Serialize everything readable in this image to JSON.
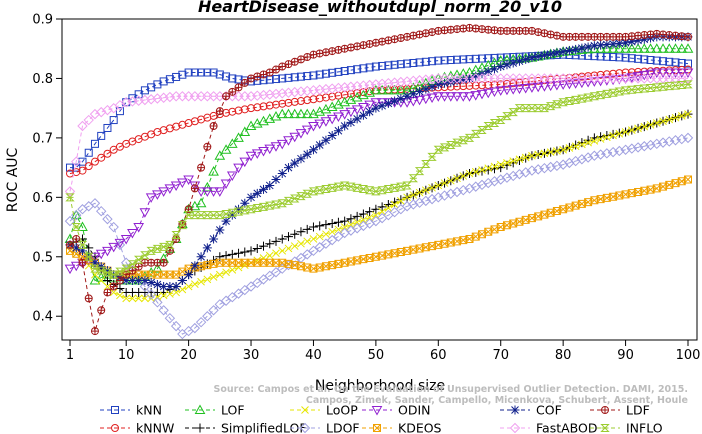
{
  "chart_data": {
    "type": "line",
    "title": "HeartDisease_withoutdupl_norm_20_v10",
    "xlabel": "Neighborhood size",
    "ylabel": "ROC AUC",
    "xlim": [
      1,
      100
    ],
    "ylim": [
      0.36,
      0.9
    ],
    "x_ticks": [
      1,
      10,
      20,
      30,
      40,
      50,
      60,
      70,
      80,
      90,
      100
    ],
    "y_ticks": [
      0.4,
      0.5,
      0.6,
      0.7,
      0.8,
      0.9
    ],
    "x_tick_labels": [
      "1",
      "10",
      "20",
      "30",
      "40",
      "50",
      "60",
      "70",
      "80",
      "90",
      "100"
    ],
    "y_tick_labels": [
      "0.4",
      "0.5",
      "0.6",
      "0.7",
      "0.8",
      "0.9"
    ],
    "grid": false,
    "legend_position": "bottom",
    "citation": [
      "Source: Campos et al. On the Evaluation of Unsupervised Outlier Detection. DAMI, 2015.",
      "Campos, Zimek, Sander, Campello, Micenkova, Schubert, Assent, Houle"
    ],
    "series": [
      {
        "name": "kNN",
        "color": "#2040c0",
        "marker": "square",
        "points": [
          [
            1,
            0.65
          ],
          [
            2,
            0.65
          ],
          [
            3,
            0.66
          ],
          [
            5,
            0.69
          ],
          [
            8,
            0.73
          ],
          [
            10,
            0.76
          ],
          [
            13,
            0.78
          ],
          [
            16,
            0.795
          ],
          [
            20,
            0.81
          ],
          [
            24,
            0.81
          ],
          [
            27,
            0.8
          ],
          [
            30,
            0.795
          ],
          [
            35,
            0.8
          ],
          [
            40,
            0.805
          ],
          [
            50,
            0.82
          ],
          [
            60,
            0.83
          ],
          [
            70,
            0.835
          ],
          [
            80,
            0.84
          ],
          [
            90,
            0.835
          ],
          [
            100,
            0.825
          ]
        ]
      },
      {
        "name": "kNNW",
        "color": "#e02020",
        "marker": "circle",
        "points": [
          [
            1,
            0.64
          ],
          [
            3,
            0.645
          ],
          [
            5,
            0.66
          ],
          [
            8,
            0.68
          ],
          [
            10,
            0.69
          ],
          [
            15,
            0.71
          ],
          [
            20,
            0.725
          ],
          [
            25,
            0.74
          ],
          [
            30,
            0.75
          ],
          [
            40,
            0.765
          ],
          [
            50,
            0.78
          ],
          [
            60,
            0.785
          ],
          [
            70,
            0.79
          ],
          [
            80,
            0.8
          ],
          [
            90,
            0.81
          ],
          [
            100,
            0.815
          ]
        ]
      },
      {
        "name": "LOF",
        "color": "#20c020",
        "marker": "triangle-up",
        "points": [
          [
            1,
            0.53
          ],
          [
            2,
            0.57
          ],
          [
            3,
            0.55
          ],
          [
            4,
            0.5
          ],
          [
            5,
            0.46
          ],
          [
            7,
            0.47
          ],
          [
            9,
            0.46
          ],
          [
            12,
            0.46
          ],
          [
            15,
            0.48
          ],
          [
            18,
            0.53
          ],
          [
            20,
            0.58
          ],
          [
            22,
            0.59
          ],
          [
            25,
            0.67
          ],
          [
            28,
            0.7
          ],
          [
            30,
            0.72
          ],
          [
            35,
            0.74
          ],
          [
            40,
            0.74
          ],
          [
            45,
            0.76
          ],
          [
            50,
            0.78
          ],
          [
            55,
            0.78
          ],
          [
            60,
            0.8
          ],
          [
            65,
            0.81
          ],
          [
            70,
            0.83
          ],
          [
            75,
            0.835
          ],
          [
            80,
            0.845
          ],
          [
            85,
            0.85
          ],
          [
            90,
            0.85
          ],
          [
            95,
            0.85
          ],
          [
            100,
            0.85
          ]
        ]
      },
      {
        "name": "SimplifiedLOF",
        "color": "#000000",
        "marker": "plus",
        "points": [
          [
            1,
            0.52
          ],
          [
            3,
            0.53
          ],
          [
            5,
            0.5
          ],
          [
            7,
            0.46
          ],
          [
            10,
            0.44
          ],
          [
            13,
            0.44
          ],
          [
            16,
            0.44
          ],
          [
            18,
            0.45
          ],
          [
            20,
            0.47
          ],
          [
            25,
            0.5
          ],
          [
            30,
            0.51
          ],
          [
            35,
            0.53
          ],
          [
            40,
            0.55
          ],
          [
            45,
            0.56
          ],
          [
            50,
            0.58
          ],
          [
            55,
            0.6
          ],
          [
            60,
            0.62
          ],
          [
            65,
            0.64
          ],
          [
            70,
            0.65
          ],
          [
            75,
            0.67
          ],
          [
            80,
            0.68
          ],
          [
            85,
            0.7
          ],
          [
            90,
            0.71
          ],
          [
            95,
            0.725
          ],
          [
            100,
            0.74
          ]
        ]
      },
      {
        "name": "LoOP",
        "color": "#e6e600",
        "marker": "x",
        "points": [
          [
            1,
            0.51
          ],
          [
            3,
            0.5
          ],
          [
            5,
            0.47
          ],
          [
            8,
            0.44
          ],
          [
            10,
            0.43
          ],
          [
            14,
            0.43
          ],
          [
            18,
            0.44
          ],
          [
            20,
            0.45
          ],
          [
            25,
            0.47
          ],
          [
            30,
            0.49
          ],
          [
            35,
            0.51
          ],
          [
            40,
            0.53
          ],
          [
            45,
            0.55
          ],
          [
            50,
            0.57
          ],
          [
            55,
            0.6
          ],
          [
            60,
            0.62
          ],
          [
            65,
            0.64
          ],
          [
            70,
            0.655
          ],
          [
            75,
            0.67
          ],
          [
            80,
            0.68
          ],
          [
            85,
            0.695
          ],
          [
            90,
            0.71
          ],
          [
            95,
            0.725
          ],
          [
            100,
            0.74
          ]
        ]
      },
      {
        "name": "LDOF",
        "color": "#a0a0e0",
        "marker": "diamond",
        "points": [
          [
            1,
            0.56
          ],
          [
            3,
            0.58
          ],
          [
            5,
            0.59
          ],
          [
            8,
            0.55
          ],
          [
            10,
            0.49
          ],
          [
            13,
            0.45
          ],
          [
            16,
            0.41
          ],
          [
            19,
            0.37
          ],
          [
            21,
            0.38
          ],
          [
            23,
            0.4
          ],
          [
            25,
            0.42
          ],
          [
            30,
            0.45
          ],
          [
            35,
            0.48
          ],
          [
            40,
            0.51
          ],
          [
            45,
            0.54
          ],
          [
            50,
            0.56
          ],
          [
            55,
            0.585
          ],
          [
            60,
            0.6
          ],
          [
            65,
            0.615
          ],
          [
            70,
            0.63
          ],
          [
            75,
            0.645
          ],
          [
            80,
            0.655
          ],
          [
            85,
            0.67
          ],
          [
            90,
            0.68
          ],
          [
            95,
            0.69
          ],
          [
            100,
            0.7
          ]
        ]
      },
      {
        "name": "ODIN",
        "color": "#9020d0",
        "marker": "triangle-down",
        "points": [
          [
            1,
            0.48
          ],
          [
            3,
            0.49
          ],
          [
            5,
            0.5
          ],
          [
            7,
            0.51
          ],
          [
            10,
            0.53
          ],
          [
            12,
            0.55
          ],
          [
            14,
            0.6
          ],
          [
            16,
            0.61
          ],
          [
            20,
            0.63
          ],
          [
            22,
            0.61
          ],
          [
            25,
            0.61
          ],
          [
            28,
            0.65
          ],
          [
            30,
            0.67
          ],
          [
            35,
            0.69
          ],
          [
            40,
            0.72
          ],
          [
            45,
            0.74
          ],
          [
            50,
            0.76
          ],
          [
            55,
            0.76
          ],
          [
            60,
            0.77
          ],
          [
            65,
            0.77
          ],
          [
            70,
            0.78
          ],
          [
            75,
            0.785
          ],
          [
            80,
            0.79
          ],
          [
            85,
            0.795
          ],
          [
            90,
            0.8
          ],
          [
            95,
            0.81
          ],
          [
            100,
            0.81
          ]
        ]
      },
      {
        "name": "KDEOS",
        "color": "#f0a000",
        "marker": "square-x",
        "points": [
          [
            1,
            0.51
          ],
          [
            3,
            0.5
          ],
          [
            5,
            0.49
          ],
          [
            8,
            0.47
          ],
          [
            10,
            0.47
          ],
          [
            14,
            0.47
          ],
          [
            18,
            0.47
          ],
          [
            20,
            0.48
          ],
          [
            25,
            0.49
          ],
          [
            30,
            0.49
          ],
          [
            35,
            0.49
          ],
          [
            40,
            0.48
          ],
          [
            45,
            0.49
          ],
          [
            50,
            0.5
          ],
          [
            55,
            0.51
          ],
          [
            60,
            0.52
          ],
          [
            65,
            0.53
          ],
          [
            70,
            0.55
          ],
          [
            75,
            0.565
          ],
          [
            80,
            0.58
          ],
          [
            85,
            0.595
          ],
          [
            90,
            0.605
          ],
          [
            95,
            0.615
          ],
          [
            100,
            0.63
          ]
        ]
      },
      {
        "name": "COF",
        "color": "#10208c",
        "marker": "star",
        "points": [
          [
            1,
            0.52
          ],
          [
            3,
            0.51
          ],
          [
            5,
            0.49
          ],
          [
            8,
            0.47
          ],
          [
            10,
            0.46
          ],
          [
            13,
            0.46
          ],
          [
            16,
            0.45
          ],
          [
            18,
            0.45
          ],
          [
            20,
            0.47
          ],
          [
            22,
            0.5
          ],
          [
            24,
            0.53
          ],
          [
            26,
            0.56
          ],
          [
            28,
            0.58
          ],
          [
            30,
            0.6
          ],
          [
            33,
            0.62
          ],
          [
            36,
            0.65
          ],
          [
            40,
            0.68
          ],
          [
            45,
            0.72
          ],
          [
            50,
            0.75
          ],
          [
            55,
            0.77
          ],
          [
            60,
            0.79
          ],
          [
            65,
            0.8
          ],
          [
            70,
            0.82
          ],
          [
            75,
            0.835
          ],
          [
            80,
            0.845
          ],
          [
            85,
            0.855
          ],
          [
            90,
            0.86
          ],
          [
            95,
            0.87
          ],
          [
            100,
            0.87
          ]
        ]
      },
      {
        "name": "FastABOD",
        "color": "#f0a0f0",
        "marker": "diamond",
        "points": [
          [
            1,
            0.61
          ],
          [
            2,
            0.66
          ],
          [
            3,
            0.72
          ],
          [
            5,
            0.74
          ],
          [
            8,
            0.75
          ],
          [
            10,
            0.76
          ],
          [
            14,
            0.765
          ],
          [
            18,
            0.77
          ],
          [
            22,
            0.77
          ],
          [
            25,
            0.77
          ],
          [
            30,
            0.77
          ],
          [
            35,
            0.775
          ],
          [
            40,
            0.78
          ],
          [
            50,
            0.79
          ],
          [
            60,
            0.8
          ],
          [
            70,
            0.8
          ],
          [
            80,
            0.8
          ],
          [
            90,
            0.8
          ],
          [
            100,
            0.8
          ]
        ]
      },
      {
        "name": "LDF",
        "color": "#a01818",
        "marker": "circle-plus",
        "points": [
          [
            1,
            0.52
          ],
          [
            2,
            0.53
          ],
          [
            3,
            0.49
          ],
          [
            4,
            0.43
          ],
          [
            5,
            0.375
          ],
          [
            6,
            0.41
          ],
          [
            7,
            0.44
          ],
          [
            9,
            0.46
          ],
          [
            10,
            0.47
          ],
          [
            13,
            0.49
          ],
          [
            16,
            0.49
          ],
          [
            18,
            0.53
          ],
          [
            20,
            0.58
          ],
          [
            22,
            0.65
          ],
          [
            24,
            0.72
          ],
          [
            26,
            0.77
          ],
          [
            28,
            0.785
          ],
          [
            30,
            0.8
          ],
          [
            33,
            0.81
          ],
          [
            35,
            0.82
          ],
          [
            40,
            0.84
          ],
          [
            45,
            0.85
          ],
          [
            50,
            0.86
          ],
          [
            55,
            0.87
          ],
          [
            60,
            0.88
          ],
          [
            65,
            0.885
          ],
          [
            70,
            0.88
          ],
          [
            75,
            0.88
          ],
          [
            80,
            0.87
          ],
          [
            85,
            0.87
          ],
          [
            90,
            0.87
          ],
          [
            95,
            0.875
          ],
          [
            100,
            0.87
          ]
        ]
      },
      {
        "name": "INFLO",
        "color": "#9ccc30",
        "marker": "hourglass",
        "points": [
          [
            1,
            0.6
          ],
          [
            2,
            0.55
          ],
          [
            3,
            0.52
          ],
          [
            5,
            0.48
          ],
          [
            8,
            0.47
          ],
          [
            10,
            0.48
          ],
          [
            14,
            0.51
          ],
          [
            17,
            0.52
          ],
          [
            20,
            0.57
          ],
          [
            25,
            0.57
          ],
          [
            30,
            0.58
          ],
          [
            35,
            0.59
          ],
          [
            40,
            0.61
          ],
          [
            45,
            0.62
          ],
          [
            50,
            0.61
          ],
          [
            55,
            0.62
          ],
          [
            60,
            0.68
          ],
          [
            65,
            0.7
          ],
          [
            68,
            0.72
          ],
          [
            70,
            0.73
          ],
          [
            73,
            0.75
          ],
          [
            77,
            0.75
          ],
          [
            80,
            0.76
          ],
          [
            85,
            0.77
          ],
          [
            90,
            0.78
          ],
          [
            95,
            0.785
          ],
          [
            100,
            0.79
          ]
        ]
      }
    ]
  }
}
